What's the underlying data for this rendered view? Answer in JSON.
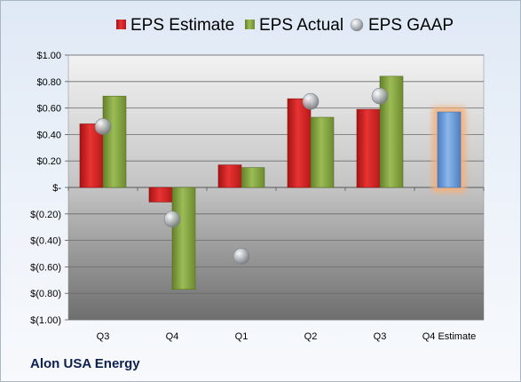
{
  "company": "Alon USA Energy",
  "chart_data": {
    "type": "bar",
    "categories": [
      "Q3",
      "Q4",
      "Q1",
      "Q2",
      "Q3",
      "Q4 Estimate"
    ],
    "series": [
      {
        "name": "EPS Estimate",
        "values": [
          0.48,
          -0.11,
          0.17,
          0.67,
          0.59,
          null
        ],
        "color": "#d11f1f"
      },
      {
        "name": "EPS Actual",
        "values": [
          0.69,
          -0.77,
          0.15,
          0.53,
          0.84,
          null
        ],
        "color": "#7f9e3c"
      },
      {
        "name": "EPS GAAP",
        "type": "scatter",
        "values": [
          0.46,
          -0.24,
          -0.52,
          0.65,
          0.69,
          null
        ],
        "color": "#9aa0a6"
      },
      {
        "name": "Q4 Estimate",
        "values": [
          null,
          null,
          null,
          null,
          null,
          0.57
        ],
        "color": "#6c9fdb"
      }
    ],
    "highlight": {
      "category": "Q4 Estimate",
      "color": "#f4b07a"
    },
    "ylim": [
      -1.0,
      1.0
    ],
    "yticks": [
      {
        "v": 1.0,
        "label": "$1.00"
      },
      {
        "v": 0.8,
        "label": "$0.80"
      },
      {
        "v": 0.6,
        "label": "$0.60"
      },
      {
        "v": 0.4,
        "label": "$0.40"
      },
      {
        "v": 0.2,
        "label": "$0.20"
      },
      {
        "v": 0.0,
        "label": "$-"
      },
      {
        "v": -0.2,
        "label": "$(0.20)"
      },
      {
        "v": -0.4,
        "label": "$(0.40)"
      },
      {
        "v": -0.6,
        "label": "$(0.60)"
      },
      {
        "v": -0.8,
        "label": "$(0.80)"
      },
      {
        "v": -1.0,
        "label": "$(1.00)"
      }
    ],
    "grid": true,
    "legend_position": "top"
  }
}
